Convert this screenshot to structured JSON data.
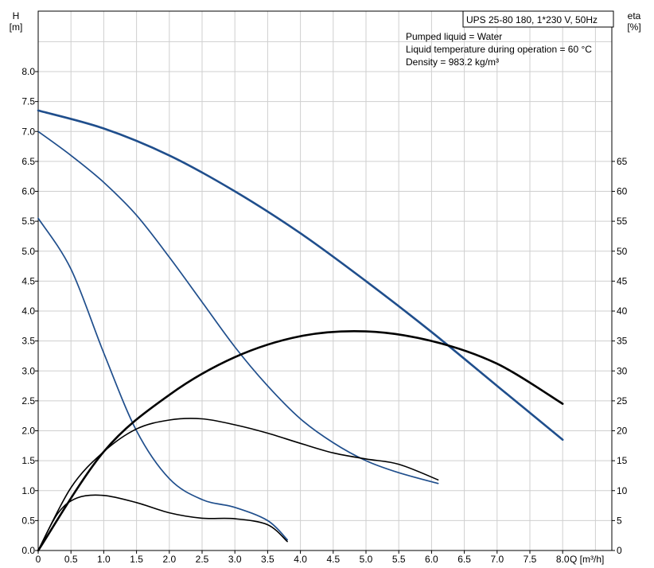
{
  "chart_data": {
    "type": "line",
    "title": "UPS 25-80 180, 1*230 V, 50Hz",
    "info_lines": [
      "Pumped liquid = Water",
      "Liquid temperature during operation = 60 °C",
      "Density = 983.2 kg/m³"
    ],
    "y_left_label": [
      "H",
      "[m]"
    ],
    "y_right_label": [
      "eta",
      "[%]"
    ],
    "x_label": "Q [m³/h]",
    "x_lim": [
      0,
      8.8
    ],
    "y_left_lim": [
      0,
      9.0
    ],
    "y_right_lim": [
      0,
      90
    ],
    "x_ticks": [
      "0",
      "0.5",
      "1.0",
      "1.5",
      "2.0",
      "2.5",
      "3.0",
      "3.5",
      "4.0",
      "4.5",
      "5.0",
      "5.5",
      "6.0",
      "6.5",
      "7.0",
      "7.5",
      "8.0"
    ],
    "y_left_ticks": [
      "0.0",
      "0.5",
      "1.0",
      "1.5",
      "2.0",
      "2.5",
      "3.0",
      "3.5",
      "4.0",
      "4.5",
      "5.0",
      "5.5",
      "6.0",
      "6.5",
      "7.0",
      "7.5",
      "8.0"
    ],
    "y_right_ticks": [
      "0",
      "5",
      "10",
      "15",
      "20",
      "25",
      "30",
      "35",
      "40",
      "45",
      "50",
      "55",
      "60",
      "65"
    ],
    "grid": true,
    "head_color": "#1f4e8c",
    "eta_color": "#000000",
    "series": [
      {
        "axis": "left",
        "kind": "head",
        "width": 2.6,
        "x": [
          0,
          1.0,
          2.0,
          3.0,
          4.0,
          5.0,
          6.0,
          7.0,
          8.0
        ],
        "y": [
          7.35,
          7.05,
          6.6,
          6.0,
          5.3,
          4.5,
          3.65,
          2.75,
          1.85
        ]
      },
      {
        "axis": "left",
        "kind": "head",
        "width": 1.7,
        "x": [
          0,
          0.5,
          1.0,
          1.5,
          2.0,
          2.5,
          3.0,
          3.5,
          4.0,
          4.5,
          5.0,
          5.5,
          6.1
        ],
        "y": [
          7.0,
          6.6,
          6.15,
          5.6,
          4.9,
          4.15,
          3.4,
          2.75,
          2.2,
          1.8,
          1.5,
          1.3,
          1.12
        ]
      },
      {
        "axis": "left",
        "kind": "head",
        "width": 1.7,
        "x": [
          0,
          0.5,
          1.0,
          1.5,
          2.0,
          2.5,
          3.0,
          3.5,
          3.8
        ],
        "y": [
          5.55,
          4.7,
          3.3,
          2.0,
          1.2,
          0.85,
          0.72,
          0.5,
          0.18
        ]
      },
      {
        "axis": "right",
        "kind": "eta",
        "width": 2.6,
        "x": [
          0,
          1.0,
          2.0,
          3.0,
          4.0,
          5.0,
          6.0,
          7.0,
          8.0
        ],
        "y": [
          0,
          16.5,
          26.0,
          32.3,
          35.8,
          36.6,
          35.0,
          31.2,
          24.5
        ]
      },
      {
        "axis": "right",
        "kind": "eta",
        "width": 1.6,
        "x": [
          0,
          0.5,
          1.0,
          1.5,
          2.0,
          2.5,
          3.0,
          3.5,
          4.0,
          4.5,
          5.0,
          5.5,
          6.1
        ],
        "y": [
          0,
          10.5,
          16.5,
          20.3,
          21.8,
          22.0,
          21.0,
          19.6,
          17.9,
          16.3,
          15.3,
          14.4,
          11.8
        ]
      },
      {
        "axis": "right",
        "kind": "eta",
        "width": 1.6,
        "x": [
          0,
          0.3,
          0.6,
          1.0,
          1.5,
          2.0,
          2.5,
          3.0,
          3.5,
          3.8
        ],
        "y": [
          0,
          6.2,
          8.8,
          9.2,
          8.0,
          6.3,
          5.4,
          5.3,
          4.3,
          1.5
        ]
      }
    ]
  }
}
